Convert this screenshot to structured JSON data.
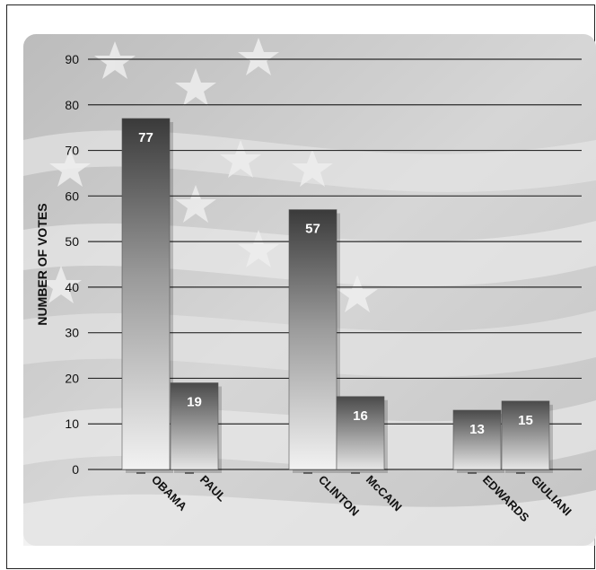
{
  "chart_data": {
    "type": "bar",
    "title": "",
    "xlabel": "",
    "ylabel": "NUMBER OF VOTES",
    "ylim": [
      0,
      90
    ],
    "yticks": [
      0,
      10,
      20,
      30,
      40,
      50,
      60,
      70,
      80,
      90
    ],
    "grid": true,
    "categories": [
      "OBAMA",
      "PAUL",
      "CLINTON",
      "McCAIN",
      "EDWARDS",
      "GIULIANI"
    ],
    "values": [
      77,
      19,
      57,
      16,
      13,
      15
    ],
    "data_labels": [
      "77",
      "19",
      "57",
      "16",
      "13",
      "15"
    ],
    "background": "american-flag-photo",
    "colors": {
      "bar_dark": "#3a3a3a",
      "bar_light": "#f0f0f0",
      "grid": "#2a2a2a"
    }
  }
}
